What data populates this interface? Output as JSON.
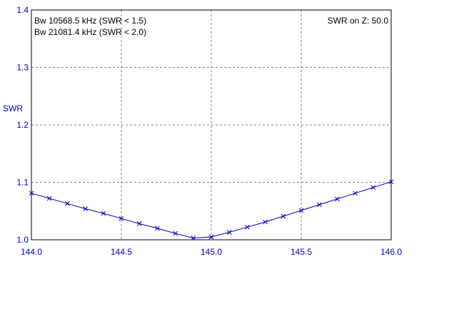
{
  "chart_data": {
    "type": "line",
    "xlabel": "",
    "ylabel": "SWR",
    "xlim": [
      144.0,
      146.0
    ],
    "ylim": [
      1.0,
      1.4
    ],
    "x_ticks": [
      "144.0",
      "144.5",
      "145.0",
      "145.5",
      "146.0"
    ],
    "y_ticks": [
      "1.0",
      "1.1",
      "1.2",
      "1.3",
      "1.4"
    ],
    "grid": true,
    "annotations": {
      "bw1": "Bw 10568.5 kHz (SWR < 1.5)",
      "bw2": "Bw 21081.4 kHz (SWR < 2.0)",
      "swr_z": "SWR on Z: 50.0"
    },
    "series": [
      {
        "color": "#0000c0",
        "marker": "x",
        "x": [
          144.0,
          144.1,
          144.2,
          144.3,
          144.4,
          144.5,
          144.6,
          144.7,
          144.8,
          144.9,
          145.0,
          145.1,
          145.2,
          145.3,
          145.4,
          145.5,
          145.6,
          145.7,
          145.8,
          145.9,
          146.0
        ],
        "y": [
          1.081,
          1.072,
          1.063,
          1.054,
          1.046,
          1.037,
          1.028,
          1.02,
          1.011,
          1.003,
          1.005,
          1.013,
          1.022,
          1.031,
          1.041,
          1.051,
          1.061,
          1.071,
          1.081,
          1.091,
          1.101
        ]
      }
    ]
  }
}
